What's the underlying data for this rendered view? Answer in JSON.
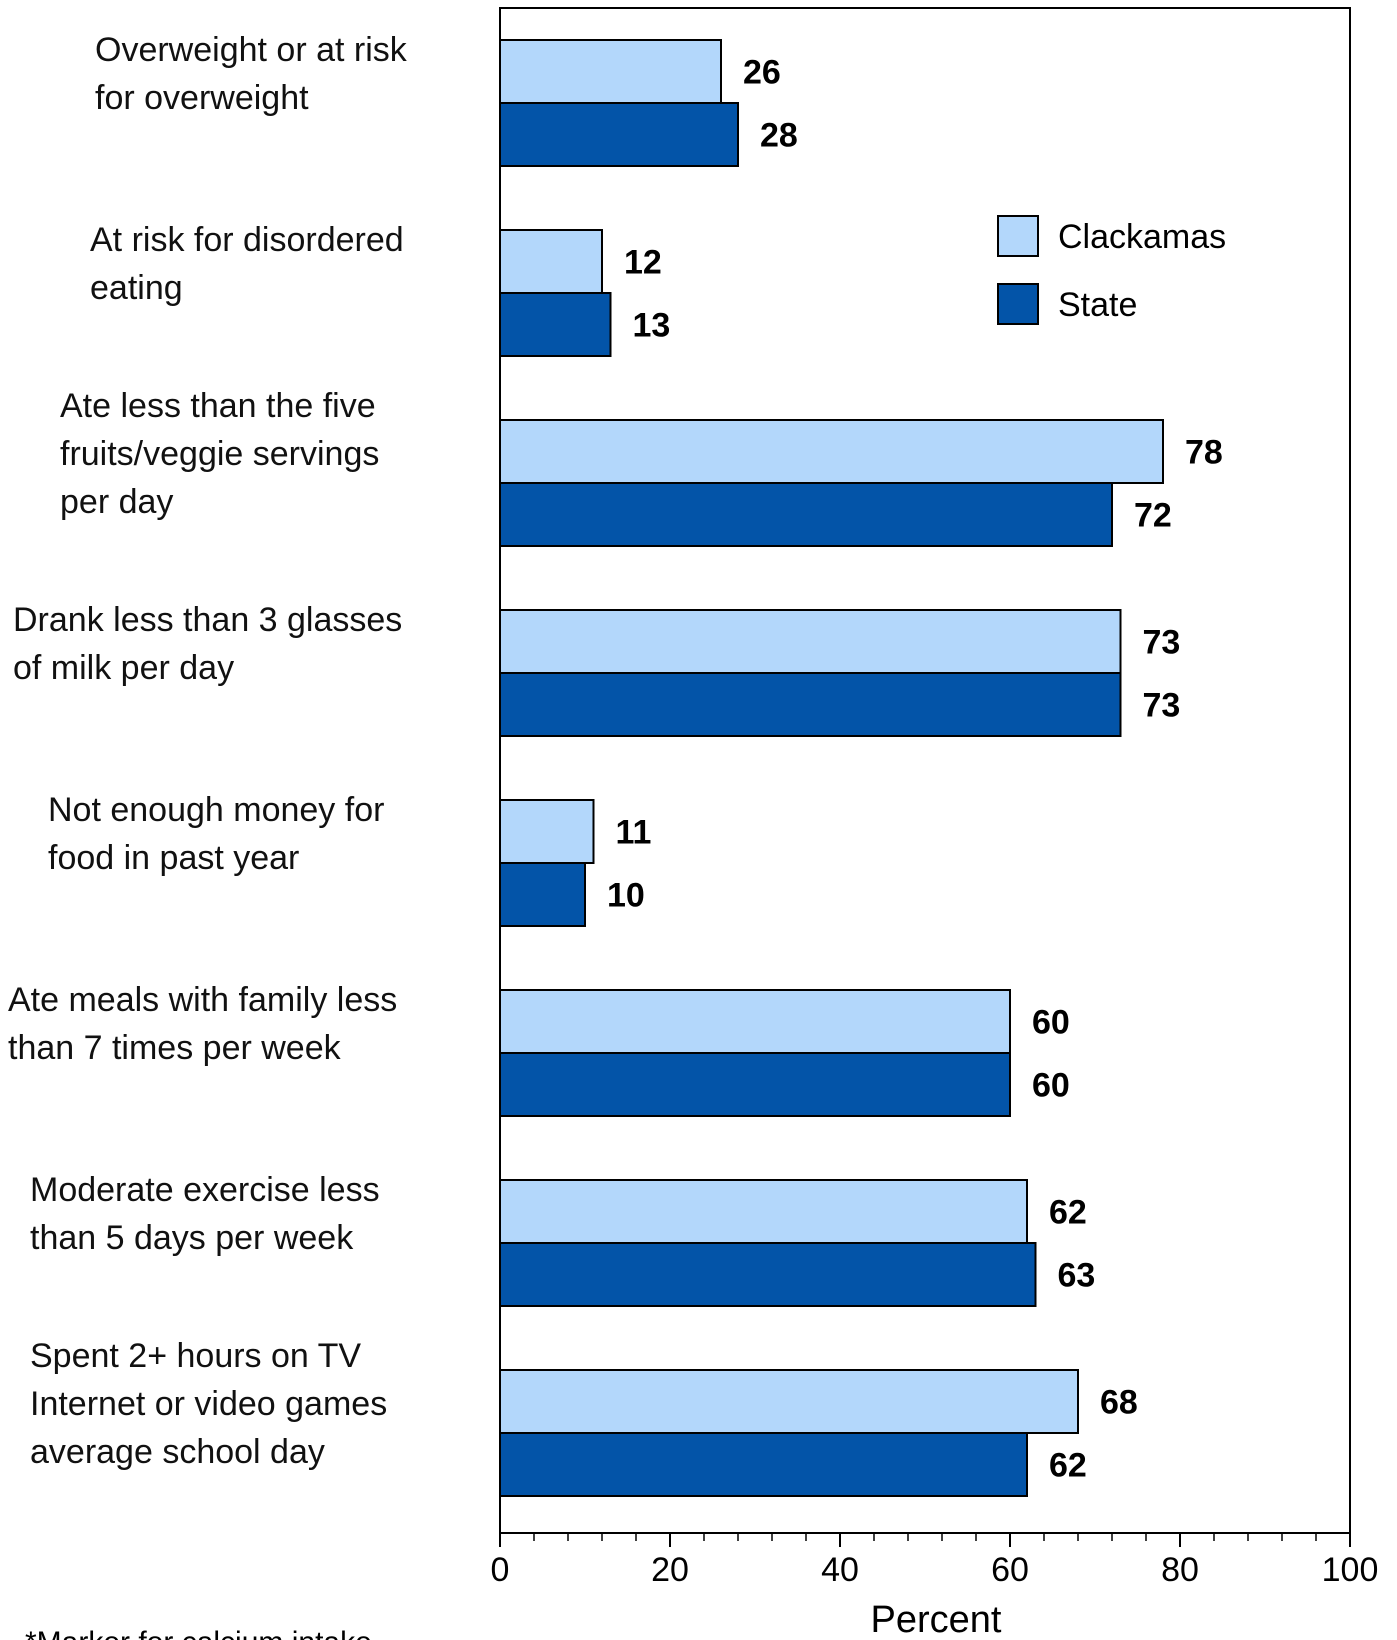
{
  "chart_data": {
    "type": "bar",
    "orientation": "horizontal",
    "categories": [
      [
        "Overweight or at risk",
        "for overweight"
      ],
      [
        "At risk for disordered",
        "eating"
      ],
      [
        "Ate less than the five",
        "fruits/veggie servings",
        "per day"
      ],
      [
        "Drank less than 3 glasses",
        "of milk per day"
      ],
      [
        "Not enough money for",
        "food in past year"
      ],
      [
        "Ate meals with family less",
        "than 7 times per week"
      ],
      [
        "Moderate exercise less",
        "than 5 days per week"
      ],
      [
        "Spent 2+ hours on TV",
        "Internet or video games",
        "average school day"
      ]
    ],
    "series": [
      {
        "name": "Clackamas",
        "color": "#b3d7fb",
        "values": [
          26,
          12,
          78,
          73,
          11,
          60,
          62,
          68
        ]
      },
      {
        "name": "State",
        "color": "#0354a8",
        "values": [
          28,
          13,
          72,
          73,
          10,
          60,
          63,
          62
        ]
      }
    ],
    "xlabel": "Percent",
    "xlim": [
      0,
      100
    ],
    "xticks": [
      0,
      20,
      40,
      60,
      80,
      100
    ],
    "legend_position": "top-right",
    "grid": false,
    "footnote": "*Marker for calcium intake"
  }
}
